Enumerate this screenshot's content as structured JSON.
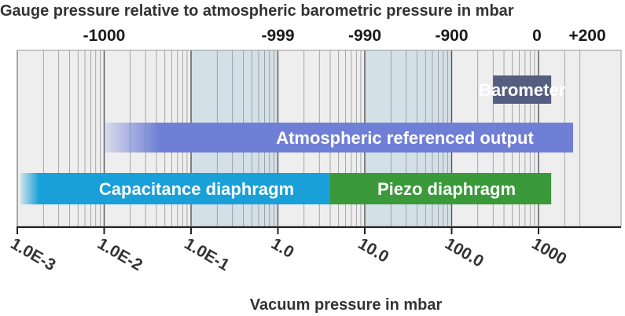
{
  "title": "Gauge pressure relative to atmospheric barometric pressure in mbar",
  "xlabel": "Vacuum pressure in mbar",
  "chart_data": {
    "type": "range-bar",
    "scale": "log",
    "xlim": [
      0.001,
      1000
    ],
    "x_extend_top": 3000,
    "bottom_axis": {
      "label": "Vacuum pressure in mbar",
      "ticks": [
        {
          "value": 0.001,
          "label": "1.0E-3"
        },
        {
          "value": 0.01,
          "label": "1.0E-2"
        },
        {
          "value": 0.1,
          "label": "1.0E-1"
        },
        {
          "value": 1,
          "label": "1.0"
        },
        {
          "value": 10,
          "label": "10.0"
        },
        {
          "value": 100,
          "label": "100.0"
        },
        {
          "value": 1000,
          "label": "1000"
        }
      ]
    },
    "top_axis": {
      "label": "Gauge pressure relative to atmospheric barometric pressure in mbar",
      "ticks": [
        {
          "at": 0.01,
          "label": "-1000"
        },
        {
          "at": 1,
          "label": "-999"
        },
        {
          "at": 10,
          "label": "-990"
        },
        {
          "at": 100,
          "label": "-900"
        },
        {
          "at": 1000,
          "label": "0"
        },
        {
          "at": 1200,
          "label": "+200"
        }
      ]
    },
    "bands": [
      {
        "name": "Barometer",
        "from": 300,
        "to": 1400,
        "color": "#555e80"
      },
      {
        "name": "Atmospheric referenced output",
        "from": 0.01,
        "to": 2500,
        "color": "#6f7fd6",
        "fade_start": true
      },
      {
        "name": "Capacitance diaphragm",
        "from": 0.001,
        "to": 4,
        "color": "#1aa0d8",
        "fade_start": true
      },
      {
        "name": "Piezo diaphragm",
        "from": 4,
        "to": 1400,
        "color": "#3a9a3a"
      }
    ],
    "colors": {
      "plot_bg": "#eeeeee",
      "shade": "#d4e0e8",
      "grid_major": "#555555",
      "grid_minor": "#888888",
      "axis": "#222222"
    }
  }
}
